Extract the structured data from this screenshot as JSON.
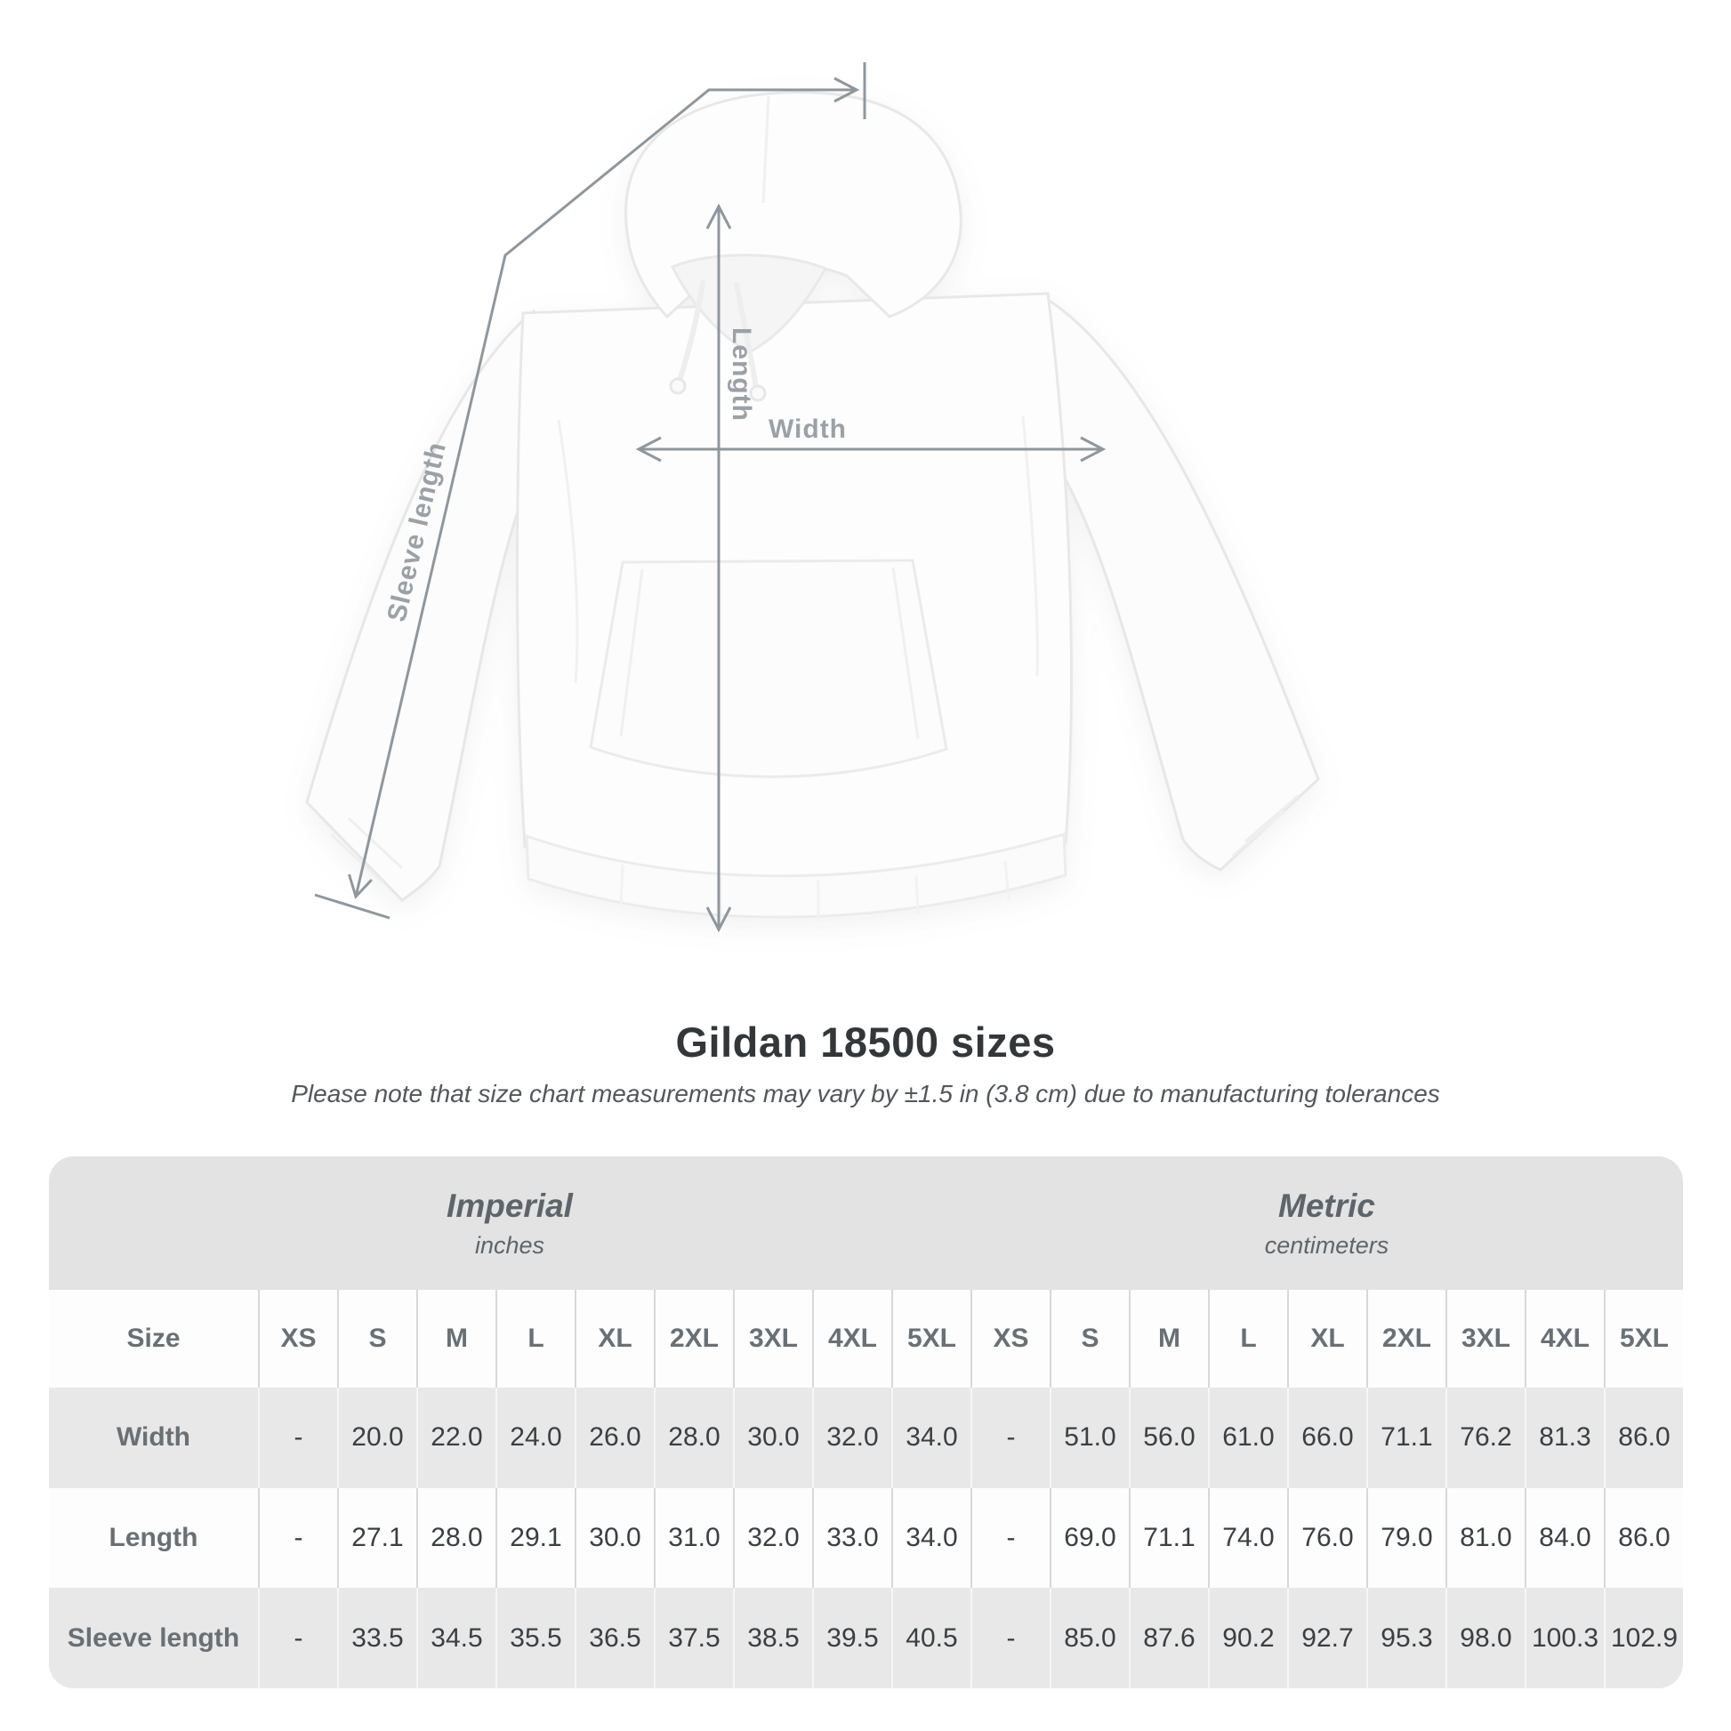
{
  "diagram": {
    "length_label": "Length",
    "width_label": "Width",
    "sleeve_label": "Sleeve length"
  },
  "title": "Gildan 18500 sizes",
  "subtitle": "Please note that size chart measurements may vary by ±1.5 in (3.8 cm) due to manufacturing tolerances",
  "chart_data": {
    "type": "table",
    "title": "Gildan 18500 sizes",
    "groups": [
      {
        "label": "Imperial",
        "unit": "inches"
      },
      {
        "label": "Metric",
        "unit": "centimeters"
      }
    ],
    "size_header": "Size",
    "sizes": [
      "XS",
      "S",
      "M",
      "L",
      "XL",
      "2XL",
      "3XL",
      "4XL",
      "5XL"
    ],
    "rows": [
      {
        "label": "Width",
        "imperial": [
          "-",
          "20.0",
          "22.0",
          "24.0",
          "26.0",
          "28.0",
          "30.0",
          "32.0",
          "34.0"
        ],
        "metric": [
          "-",
          "51.0",
          "56.0",
          "61.0",
          "66.0",
          "71.1",
          "76.2",
          "81.3",
          "86.0"
        ]
      },
      {
        "label": "Length",
        "imperial": [
          "-",
          "27.1",
          "28.0",
          "29.1",
          "30.0",
          "31.0",
          "32.0",
          "33.0",
          "34.0"
        ],
        "metric": [
          "-",
          "69.0",
          "71.1",
          "74.0",
          "76.0",
          "79.0",
          "81.0",
          "84.0",
          "86.0"
        ]
      },
      {
        "label": "Sleeve length",
        "imperial": [
          "-",
          "33.5",
          "34.5",
          "35.5",
          "36.5",
          "37.5",
          "38.5",
          "39.5",
          "40.5"
        ],
        "metric": [
          "-",
          "85.0",
          "87.6",
          "90.2",
          "92.7",
          "95.3",
          "98.0",
          "100.3",
          "102.9"
        ]
      }
    ]
  }
}
